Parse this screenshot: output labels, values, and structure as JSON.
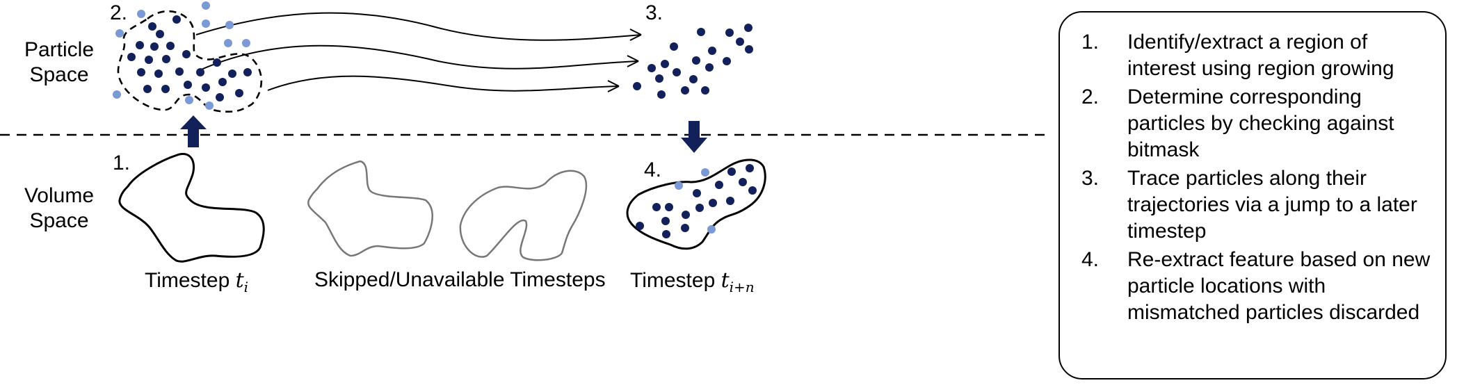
{
  "spaces": {
    "particle": "Particle Space",
    "volume": "Volume Space"
  },
  "step_numbers": {
    "s1": "1.",
    "s2": "2.",
    "s3": "3.",
    "s4": "4."
  },
  "captions": {
    "left_prefix": "Timestep ",
    "left_var": "t",
    "left_sub": "i",
    "middle": "Skipped/Unavailable Timesteps",
    "right_prefix": "Timestep ",
    "right_var": "t",
    "right_sub": "i+n"
  },
  "legend": {
    "items": [
      {
        "num": "1.",
        "text": "Identify/extract a region of interest using region growing"
      },
      {
        "num": "2.",
        "text": "Determine corresponding particles by checking against bitmask"
      },
      {
        "num": "3.",
        "text": "Trace particles along their trajectories via a jump to a later timestep"
      },
      {
        "num": "4.",
        "text": "Re-extract feature based on new particle locations with mismatched particles discarded"
      }
    ]
  },
  "colors": {
    "particle_dark": "#12215a",
    "particle_light": "#7b99d4",
    "arrow_solid": "#12215a",
    "outline_gray": "#777777"
  },
  "icons": {
    "up_arrow": "up-arrow-icon",
    "down_arrow": "down-arrow-icon"
  }
}
